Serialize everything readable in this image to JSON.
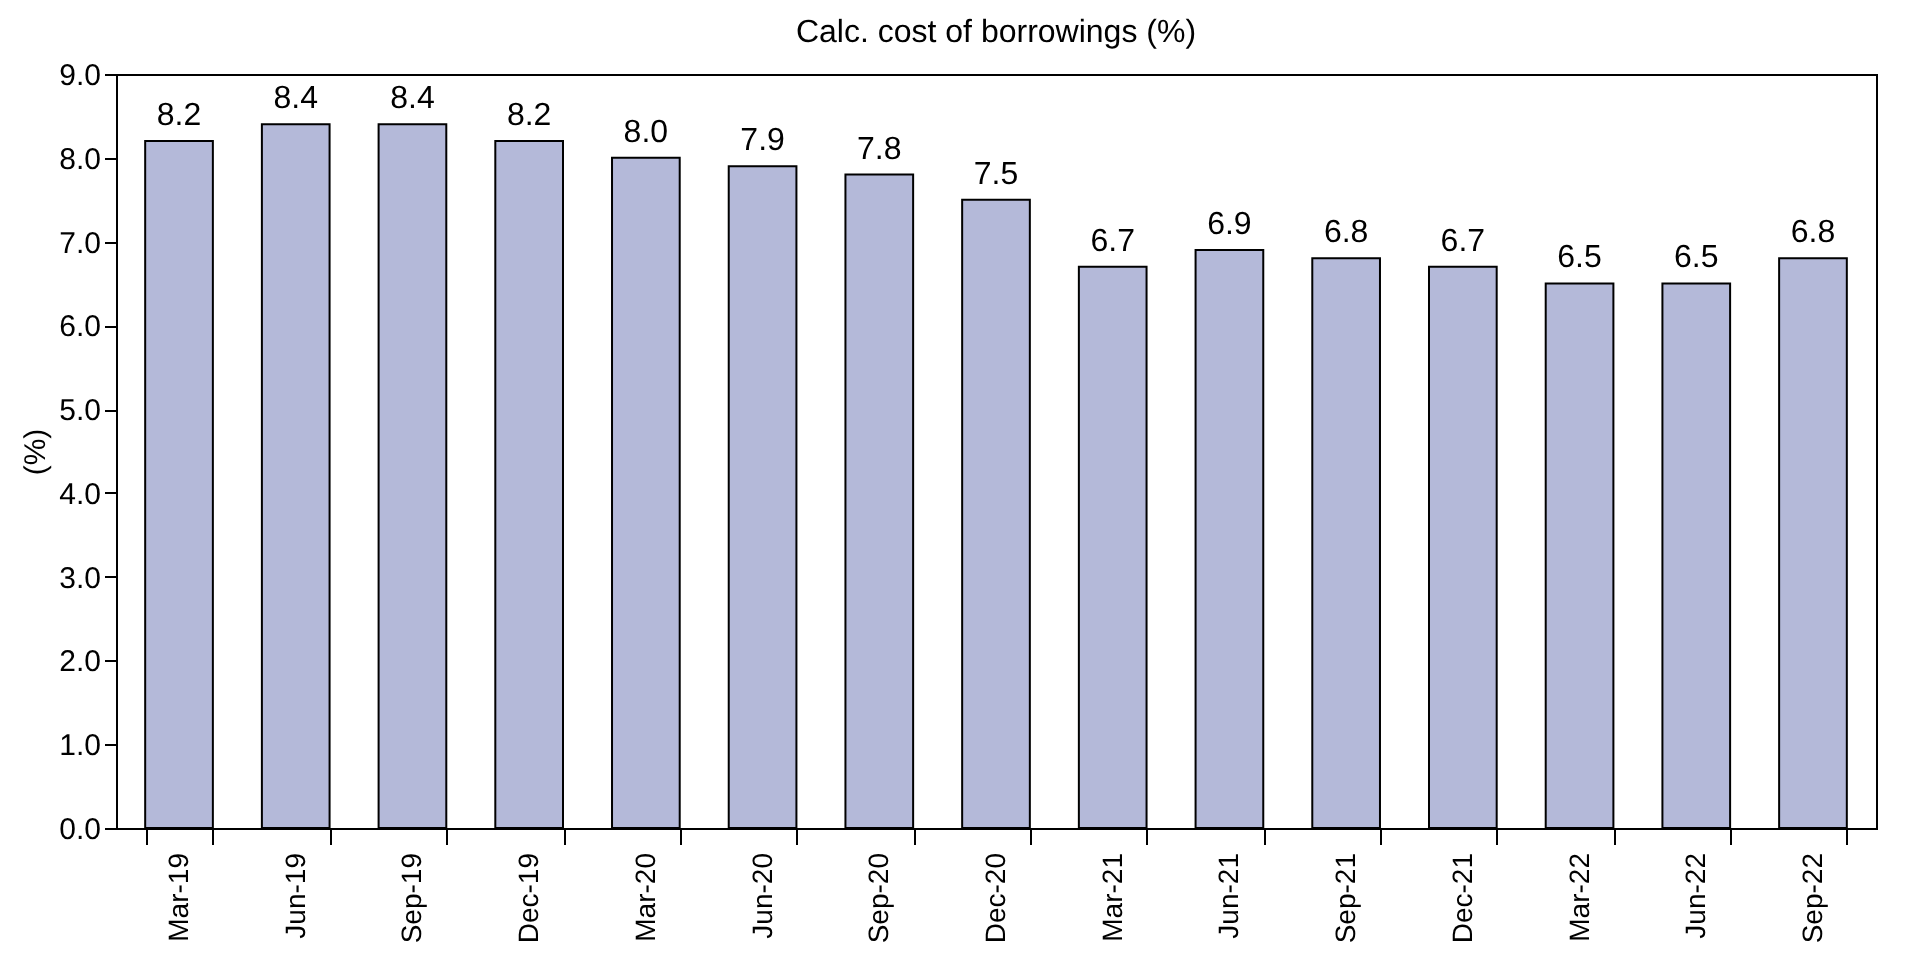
{
  "chart_data": {
    "type": "bar",
    "title": "Calc. cost of borrowings (%)",
    "ylabel": "(%)",
    "categories": [
      "Mar-19",
      "Jun-19",
      "Sep-19",
      "Dec-19",
      "Mar-20",
      "Jun-20",
      "Sep-20",
      "Dec-20",
      "Mar-21",
      "Jun-21",
      "Sep-21",
      "Dec-21",
      "Mar-22",
      "Jun-22",
      "Sep-22"
    ],
    "values": [
      8.2,
      8.4,
      8.4,
      8.2,
      8.0,
      7.9,
      7.8,
      7.5,
      6.7,
      6.9,
      6.8,
      6.7,
      6.5,
      6.5,
      6.8
    ],
    "value_labels": [
      "8.2",
      "8.4",
      "8.4",
      "8.2",
      "8.0",
      "7.9",
      "7.8",
      "7.5",
      "6.7",
      "6.9",
      "6.8",
      "6.7",
      "6.5",
      "6.5",
      "6.8"
    ],
    "color": "#b4b9d9",
    "ylim": [
      0,
      9
    ],
    "yticks": [
      {
        "value": 0,
        "label": "0.0"
      },
      {
        "value": 1,
        "label": "1.0"
      },
      {
        "value": 2,
        "label": "2.0"
      },
      {
        "value": 3,
        "label": "3.0"
      },
      {
        "value": 4,
        "label": "4.0"
      },
      {
        "value": 5,
        "label": "5.0"
      },
      {
        "value": 6,
        "label": "6.0"
      },
      {
        "value": 7,
        "label": "7.0"
      },
      {
        "value": 8,
        "label": "8.0"
      },
      {
        "value": 9,
        "label": "9.0"
      }
    ],
    "grid": false
  }
}
